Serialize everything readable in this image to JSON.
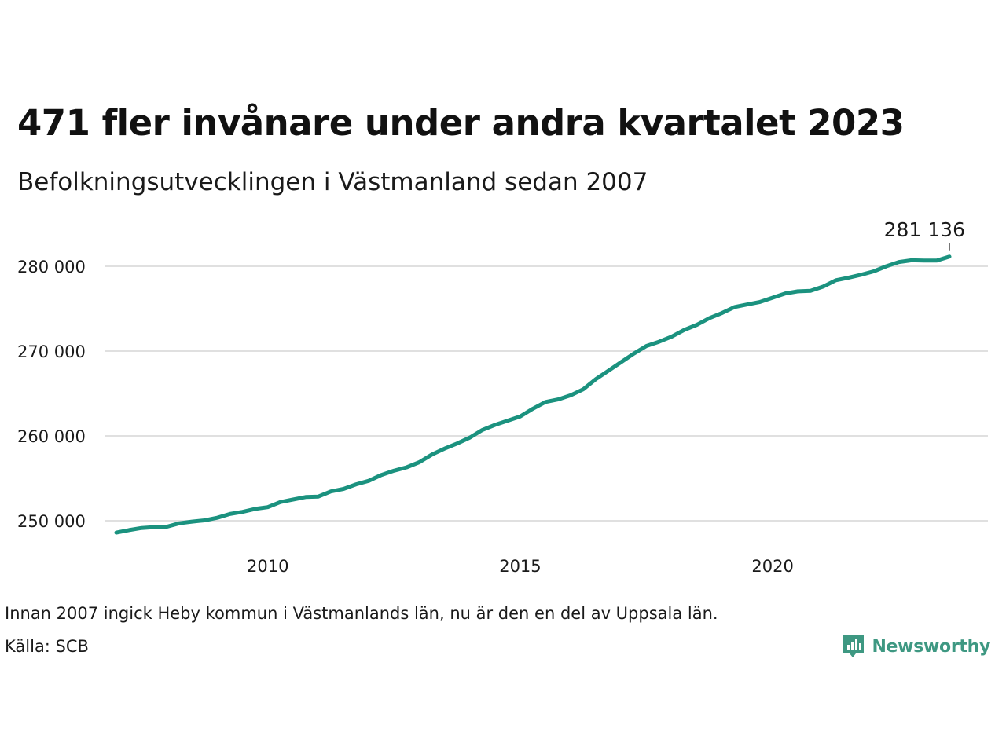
{
  "title": "471 fler invånare under andra kvartalet 2023",
  "subtitle": "Befolkningsutvecklingen i Västmanland sedan 2007",
  "note": "Innan 2007 ingick Heby kommun i Västmanlands län, nu är den en del av Uppsala län.",
  "source": "Källa: SCB",
  "brand": {
    "name": "Newsworthy",
    "logo_icon": "newsworthy-logo-icon",
    "color": "#3e9882"
  },
  "colors": {
    "line": "#1b927f",
    "grid": "#e0e0e0"
  },
  "chart_data": {
    "type": "line",
    "title": "471 fler invånare under andra kvartalet 2023",
    "subtitle": "Befolkningsutvecklingen i Västmanland sedan 2007",
    "xlabel": "",
    "ylabel": "",
    "xlim": [
      2007.0,
      2025.0
    ],
    "ylim": [
      247500,
      283000
    ],
    "grid": true,
    "y_ticks": [
      250000,
      260000,
      270000,
      280000
    ],
    "y_tick_labels": [
      "250 000",
      "260 000",
      "270 000",
      "280 000"
    ],
    "x_ticks": [
      2010,
      2015,
      2020
    ],
    "x_tick_labels": [
      "2010",
      "2015",
      "2020"
    ],
    "annotation": {
      "x": 2023.5,
      "y": 281136,
      "label": "281 136"
    },
    "series": [
      {
        "x": [
          2007.0,
          2007.25,
          2007.5,
          2007.75,
          2008.0,
          2008.25,
          2008.5,
          2008.75,
          2009.0,
          2009.25,
          2009.5,
          2009.75,
          2010.0,
          2010.25,
          2010.5,
          2010.75,
          2011.0,
          2011.25,
          2011.5,
          2011.75,
          2012.0,
          2012.25,
          2012.5,
          2012.75,
          2013.0,
          2013.25,
          2013.5,
          2013.75,
          2014.0,
          2014.25,
          2014.5,
          2014.75,
          2015.0,
          2015.25,
          2015.5,
          2015.75,
          2016.0,
          2016.25,
          2016.5,
          2016.75,
          2017.0,
          2017.25,
          2017.5,
          2017.75,
          2018.0,
          2018.25,
          2018.5,
          2018.75,
          2019.0,
          2019.25,
          2019.5,
          2019.75,
          2020.0,
          2020.25,
          2020.5,
          2020.75,
          2021.0,
          2021.25,
          2021.5,
          2021.75,
          2022.0,
          2022.25,
          2022.5,
          2022.75,
          2023.0,
          2023.25,
          2023.5
        ],
        "y": [
          248600,
          248900,
          249150,
          249250,
          249300,
          249700,
          249900,
          250050,
          250350,
          250800,
          251050,
          251400,
          251600,
          252200,
          252500,
          252800,
          252850,
          253450,
          253750,
          254300,
          254700,
          255400,
          255900,
          256300,
          256900,
          257800,
          258500,
          259100,
          259800,
          260700,
          261300,
          261800,
          262300,
          263200,
          264000,
          264300,
          264800,
          265500,
          266700,
          267700,
          268700,
          269700,
          270600,
          271100,
          271700,
          272500,
          273100,
          273900,
          274500,
          275200,
          275500,
          275800,
          276300,
          276800,
          277050,
          277100,
          277600,
          278350,
          278650,
          279000,
          279400,
          280000,
          280500,
          280700,
          280665,
          280665,
          281136
        ]
      }
    ]
  }
}
